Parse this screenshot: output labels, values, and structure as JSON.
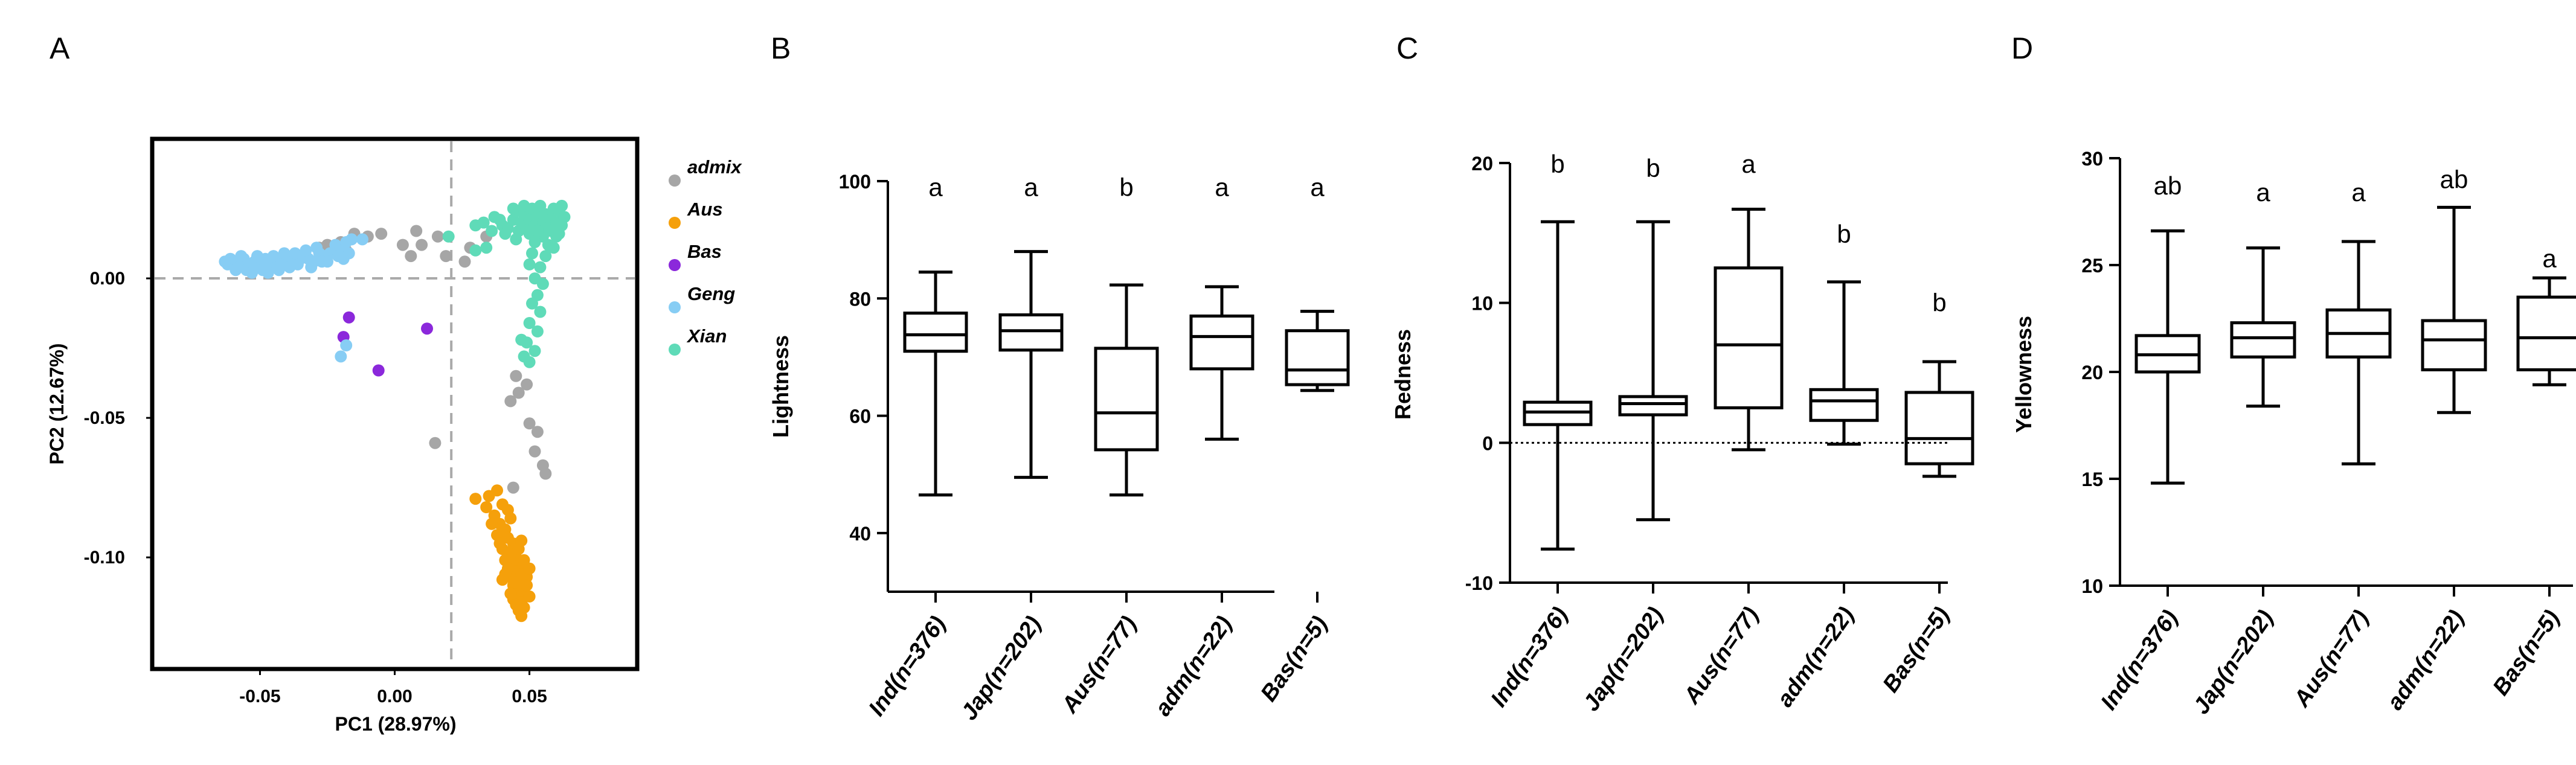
{
  "chart_data": [
    {
      "type": "scatter",
      "panel": "A",
      "xlabel": "PC1 (28.97%)",
      "ylabel": "PC2 (12.67%)",
      "xlim": [
        -0.09,
        0.09
      ],
      "ylim": [
        -0.14,
        0.05
      ],
      "xticks": [
        {
          "v": -0.05,
          "label": "-0.05"
        },
        {
          "v": 0.0,
          "label": "0.00"
        },
        {
          "v": 0.05,
          "label": "0.05"
        }
      ],
      "yticks": [
        {
          "v": 0.0,
          "label": "0.00"
        },
        {
          "v": -0.05,
          "label": "-0.05"
        },
        {
          "v": -0.1,
          "label": "-0.10"
        }
      ],
      "reference_lines": {
        "x": 0.021,
        "y": 0.0
      },
      "series": [
        {
          "name": "admix",
          "color": "#a6a6a6",
          "points": [
            [
              -0.02,
              0.013
            ],
            [
              -0.015,
              0.016
            ],
            [
              -0.01,
              0.015
            ],
            [
              -0.005,
              0.016
            ],
            [
              -0.018,
              0.01
            ],
            [
              -0.025,
              0.012
            ],
            [
              0.003,
              0.012
            ],
            [
              0.008,
              0.017
            ],
            [
              0.01,
              0.012
            ],
            [
              0.016,
              0.015
            ],
            [
              0.028,
              0.011
            ],
            [
              0.034,
              0.015
            ],
            [
              0.006,
              0.008
            ],
            [
              0.019,
              0.008
            ],
            [
              0.026,
              0.006
            ],
            [
              -0.028,
              0.011
            ],
            [
              0.045,
              -0.035
            ],
            [
              0.049,
              -0.038
            ],
            [
              0.043,
              -0.044
            ],
            [
              0.046,
              -0.041
            ],
            [
              0.05,
              -0.052
            ],
            [
              0.053,
              -0.055
            ],
            [
              0.052,
              -0.062
            ],
            [
              0.056,
              -0.07
            ],
            [
              0.055,
              -0.067
            ],
            [
              0.044,
              -0.075
            ],
            [
              0.015,
              -0.059
            ]
          ]
        },
        {
          "name": "Aus",
          "color": "#f5a00b",
          "points": [
            [
              0.03,
              -0.079
            ],
            [
              0.035,
              -0.078
            ],
            [
              0.038,
              -0.076
            ],
            [
              0.034,
              -0.082
            ],
            [
              0.04,
              -0.081
            ],
            [
              0.037,
              -0.085
            ],
            [
              0.042,
              -0.083
            ],
            [
              0.039,
              -0.088
            ],
            [
              0.041,
              -0.09
            ],
            [
              0.043,
              -0.086
            ],
            [
              0.038,
              -0.092
            ],
            [
              0.042,
              -0.093
            ],
            [
              0.044,
              -0.095
            ],
            [
              0.04,
              -0.097
            ],
            [
              0.043,
              -0.098
            ],
            [
              0.045,
              -0.1
            ],
            [
              0.041,
              -0.101
            ],
            [
              0.044,
              -0.102
            ],
            [
              0.046,
              -0.103
            ],
            [
              0.042,
              -0.104
            ],
            [
              0.045,
              -0.105
            ],
            [
              0.047,
              -0.106
            ],
            [
              0.043,
              -0.107
            ],
            [
              0.046,
              -0.108
            ],
            [
              0.044,
              -0.11
            ],
            [
              0.047,
              -0.111
            ],
            [
              0.045,
              -0.112
            ],
            [
              0.048,
              -0.113
            ],
            [
              0.046,
              -0.114
            ],
            [
              0.044,
              -0.115
            ],
            [
              0.047,
              -0.116
            ],
            [
              0.045,
              -0.117
            ],
            [
              0.048,
              -0.118
            ],
            [
              0.046,
              -0.119
            ],
            [
              0.047,
              -0.121
            ],
            [
              0.045,
              -0.109
            ],
            [
              0.049,
              -0.107
            ],
            [
              0.041,
              -0.106
            ],
            [
              0.048,
              -0.101
            ],
            [
              0.039,
              -0.095
            ],
            [
              0.046,
              -0.097
            ],
            [
              0.05,
              -0.104
            ],
            [
              0.049,
              -0.11
            ],
            [
              0.043,
              -0.113
            ],
            [
              0.04,
              -0.108
            ],
            [
              0.036,
              -0.088
            ],
            [
              0.047,
              -0.094
            ],
            [
              0.05,
              -0.114
            ]
          ]
        },
        {
          "name": "Bas",
          "color": "#8b28db",
          "points": [
            [
              -0.017,
              -0.014
            ],
            [
              -0.019,
              -0.021
            ],
            [
              -0.006,
              -0.033
            ],
            [
              0.012,
              -0.018
            ]
          ]
        },
        {
          "name": "Geng",
          "color": "#87cdf4",
          "points": [
            [
              -0.062,
              0.005
            ],
            [
              -0.06,
              0.006
            ],
            [
              -0.058,
              0.004
            ],
            [
              -0.056,
              0.007
            ],
            [
              -0.054,
              0.005
            ],
            [
              -0.052,
              0.006
            ],
            [
              -0.05,
              0.004
            ],
            [
              -0.048,
              0.007
            ],
            [
              -0.046,
              0.005
            ],
            [
              -0.044,
              0.006
            ],
            [
              -0.042,
              0.005
            ],
            [
              -0.04,
              0.007
            ],
            [
              -0.038,
              0.006
            ],
            [
              -0.036,
              0.005
            ],
            [
              -0.034,
              0.008
            ],
            [
              -0.032,
              0.007
            ],
            [
              -0.03,
              0.006
            ],
            [
              -0.028,
              0.009
            ],
            [
              -0.026,
              0.008
            ],
            [
              -0.024,
              0.009
            ],
            [
              -0.022,
              0.012
            ],
            [
              -0.02,
              0.011
            ],
            [
              -0.018,
              0.013
            ],
            [
              -0.016,
              0.014
            ],
            [
              -0.061,
              0.007
            ],
            [
              -0.057,
              0.008
            ],
            [
              -0.055,
              0.003
            ],
            [
              -0.051,
              0.008
            ],
            [
              -0.049,
              0.003
            ],
            [
              -0.045,
              0.008
            ],
            [
              -0.043,
              0.003
            ],
            [
              -0.039,
              0.004
            ],
            [
              -0.035,
              0.007
            ],
            [
              -0.031,
              0.004
            ],
            [
              -0.027,
              0.006
            ],
            [
              -0.053,
              0.002
            ],
            [
              -0.047,
              0.002
            ],
            [
              -0.041,
              0.009
            ],
            [
              -0.037,
              0.009
            ],
            [
              -0.033,
              0.01
            ],
            [
              -0.059,
              0.003
            ],
            [
              -0.063,
              0.006
            ],
            [
              -0.029,
              0.011
            ],
            [
              -0.025,
              0.006
            ],
            [
              -0.021,
              0.008
            ],
            [
              -0.019,
              0.007
            ],
            [
              -0.017,
              0.009
            ],
            [
              -0.012,
              0.014
            ],
            [
              -0.02,
              -0.028
            ],
            [
              -0.018,
              -0.024
            ]
          ]
        },
        {
          "name": "Xian",
          "color": "#5fdbb8",
          "points": [
            [
              0.02,
              0.015
            ],
            [
              0.03,
              0.01
            ],
            [
              0.03,
              0.019
            ],
            [
              0.033,
              0.02
            ],
            [
              0.036,
              0.017
            ],
            [
              0.037,
              0.022
            ],
            [
              0.04,
              0.019
            ],
            [
              0.042,
              0.018
            ],
            [
              0.044,
              0.021
            ],
            [
              0.045,
              0.024
            ],
            [
              0.046,
              0.017
            ],
            [
              0.047,
              0.02
            ],
            [
              0.048,
              0.023
            ],
            [
              0.049,
              0.018
            ],
            [
              0.05,
              0.021
            ],
            [
              0.051,
              0.025
            ],
            [
              0.052,
              0.019
            ],
            [
              0.053,
              0.022
            ],
            [
              0.054,
              0.026
            ],
            [
              0.055,
              0.02
            ],
            [
              0.056,
              0.023
            ],
            [
              0.057,
              0.018
            ],
            [
              0.058,
              0.021
            ],
            [
              0.059,
              0.025
            ],
            [
              0.06,
              0.02
            ],
            [
              0.061,
              0.024
            ],
            [
              0.062,
              0.019
            ],
            [
              0.062,
              0.026
            ],
            [
              0.063,
              0.022
            ],
            [
              0.05,
              0.016
            ],
            [
              0.055,
              0.015
            ],
            [
              0.06,
              0.015
            ],
            [
              0.052,
              0.013
            ],
            [
              0.057,
              0.012
            ],
            [
              0.051,
              0.009
            ],
            [
              0.056,
              0.008
            ],
            [
              0.05,
              0.005
            ],
            [
              0.054,
              0.004
            ],
            [
              0.052,
              0.0
            ],
            [
              0.055,
              -0.002
            ],
            [
              0.053,
              -0.006
            ],
            [
              0.051,
              -0.009
            ],
            [
              0.054,
              -0.012
            ],
            [
              0.05,
              -0.016
            ],
            [
              0.053,
              -0.019
            ],
            [
              0.049,
              -0.023
            ],
            [
              0.052,
              -0.026
            ],
            [
              0.05,
              -0.03
            ],
            [
              0.048,
              -0.028
            ],
            [
              0.047,
              -0.022
            ],
            [
              0.058,
              0.017
            ],
            [
              0.041,
              0.016
            ],
            [
              0.039,
              0.021
            ],
            [
              0.034,
              0.011
            ],
            [
              0.045,
              0.014
            ],
            [
              0.059,
              0.011
            ],
            [
              0.061,
              0.016
            ],
            [
              0.044,
              0.025
            ],
            [
              0.048,
              0.026
            ],
            [
              0.053,
              0.017
            ]
          ]
        }
      ],
      "legend": [
        "admix",
        "Aus",
        "Bas",
        "Geng",
        "Xian"
      ]
    },
    {
      "type": "box",
      "panel": "B",
      "ylabel": "Lightness",
      "ylim": [
        30,
        100
      ],
      "yticks": [
        40,
        60,
        80,
        100
      ],
      "categories": [
        "Ind(n=376)",
        "Jap(n=202)",
        "Aus(n=77)",
        "adm(n=22)",
        "Bas(n=5)"
      ],
      "boxes": [
        {
          "min": 46.5,
          "q1": 71.0,
          "median": 73.8,
          "q3": 77.5,
          "max": 84.5
        },
        {
          "min": 49.5,
          "q1": 71.2,
          "median": 74.5,
          "q3": 77.2,
          "max": 88.0
        },
        {
          "min": 46.5,
          "q1": 54.2,
          "median": 60.5,
          "q3": 71.5,
          "max": 82.3
        },
        {
          "min": 56.0,
          "q1": 68.0,
          "median": 73.5,
          "q3": 77.0,
          "max": 82.0
        },
        {
          "min": 64.3,
          "q1": 65.3,
          "median": 67.8,
          "q3": 74.5,
          "max": 77.8
        }
      ],
      "significance": [
        "a",
        "a",
        "b",
        "a",
        "a"
      ],
      "significance_y": 97.5
    },
    {
      "type": "box",
      "panel": "C",
      "ylabel": "Redness",
      "ylim": [
        -10,
        20
      ],
      "yticks": [
        -10,
        0,
        10,
        20
      ],
      "reference_line": 0,
      "categories": [
        "Ind(n=376)",
        "Jap(n=202)",
        "Aus(n=77)",
        "adm(n=22)",
        "Bas(n=5)"
      ],
      "boxes": [
        {
          "min": -7.6,
          "q1": 1.3,
          "median": 2.2,
          "q3": 2.9,
          "max": 15.8
        },
        {
          "min": -5.5,
          "q1": 2.0,
          "median": 2.8,
          "q3": 3.3,
          "max": 15.8
        },
        {
          "min": -0.5,
          "q1": 2.5,
          "median": 7.0,
          "q3": 12.5,
          "max": 16.7
        },
        {
          "min": -0.1,
          "q1": 1.6,
          "median": 3.0,
          "q3": 3.8,
          "max": 11.5
        },
        {
          "min": -2.4,
          "q1": -1.5,
          "median": 0.3,
          "q3": 3.6,
          "max": 5.8
        }
      ],
      "significance": [
        "b",
        "b",
        "a",
        "b",
        "b"
      ],
      "significance_y": [
        19.3,
        19.0,
        19.3,
        14.3,
        9.4
      ]
    },
    {
      "type": "box",
      "panel": "D",
      "ylabel": "Yellowness",
      "ylim": [
        10,
        30
      ],
      "yticks": [
        10,
        15,
        20,
        25,
        30
      ],
      "categories": [
        "Ind(n=376)",
        "Jap(n=202)",
        "Aus(n=77)",
        "adm(n=22)",
        "Bas(n=5)"
      ],
      "boxes": [
        {
          "min": 14.8,
          "q1": 20.0,
          "median": 20.8,
          "q3": 21.7,
          "max": 26.6
        },
        {
          "min": 18.4,
          "q1": 20.7,
          "median": 21.6,
          "q3": 22.3,
          "max": 25.8
        },
        {
          "min": 15.7,
          "q1": 20.7,
          "median": 21.8,
          "q3": 22.9,
          "max": 26.1
        },
        {
          "min": 18.1,
          "q1": 20.1,
          "median": 21.5,
          "q3": 22.4,
          "max": 27.7
        },
        {
          "min": 19.4,
          "q1": 20.1,
          "median": 21.6,
          "q3": 23.5,
          "max": 24.4
        }
      ],
      "significance": [
        "ab",
        "a",
        "a",
        "ab",
        "a"
      ],
      "significance_y": [
        28.3,
        28.0,
        28.0,
        28.6,
        24.9
      ]
    }
  ]
}
